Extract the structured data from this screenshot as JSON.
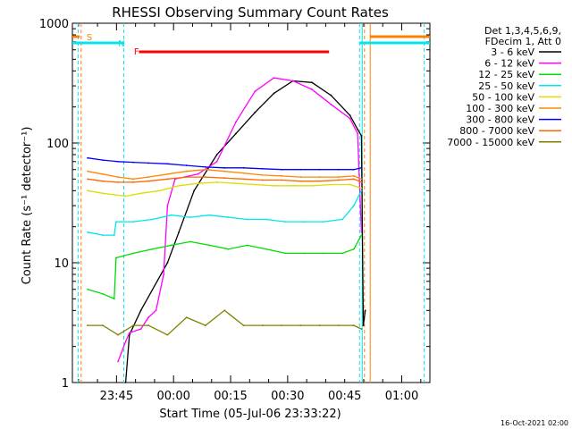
{
  "chart_data": {
    "type": "line",
    "title": "RHESSI Observing Summary Count Rates",
    "xlabel": "Start Time (05-Jul-06 23:33:22)",
    "ylabel": "Count Rate (s⁻¹ detector⁻¹)",
    "y_scale": "log",
    "ylim": [
      1,
      1000
    ],
    "y_ticks": [
      "1",
      "10",
      "100",
      "1000"
    ],
    "x_unit": "minutes since 23:33:22",
    "xlim": [
      0,
      94
    ],
    "x_ticks": [
      {
        "label": "23:45",
        "value": 11.6
      },
      {
        "label": "00:00",
        "value": 26.6
      },
      {
        "label": "00:15",
        "value": 41.6
      },
      {
        "label": "00:30",
        "value": 56.6
      },
      {
        "label": "00:45",
        "value": 71.6
      },
      {
        "label": "01:00",
        "value": 86.6
      }
    ],
    "legend_header": [
      "Det 1,3,4,5,6,9,",
      "FDecim 1, Att 0"
    ],
    "legend_position": "right",
    "footer": "16-Oct-2021 02:00",
    "markers": [
      {
        "label": "S",
        "color": "#ff8000"
      },
      {
        "label": "N",
        "color": "#00e5ee"
      },
      {
        "label": "F",
        "color": "#ff0000"
      }
    ],
    "series": [
      {
        "name": "3 - 6 keV",
        "color": "#000000",
        "points": [
          [
            14,
            1
          ],
          [
            15,
            2.5
          ],
          [
            18,
            4
          ],
          [
            25,
            10
          ],
          [
            28,
            18
          ],
          [
            32,
            40
          ],
          [
            38,
            80
          ],
          [
            43,
            120
          ],
          [
            48,
            180
          ],
          [
            53,
            260
          ],
          [
            58,
            330
          ],
          [
            63,
            320
          ],
          [
            68,
            250
          ],
          [
            73,
            170
          ],
          [
            75,
            130
          ],
          [
            76,
            115
          ],
          [
            76.5,
            3
          ],
          [
            77,
            4
          ]
        ]
      },
      {
        "name": "6 - 12 keV",
        "color": "#ff00ff",
        "points": [
          [
            12,
            1.5
          ],
          [
            14,
            2.2
          ],
          [
            15,
            2.6
          ],
          [
            18,
            2.8
          ],
          [
            20,
            3.5
          ],
          [
            22,
            4
          ],
          [
            24,
            8
          ],
          [
            25,
            30
          ],
          [
            27,
            50
          ],
          [
            33,
            55
          ],
          [
            38,
            70
          ],
          [
            43,
            150
          ],
          [
            48,
            270
          ],
          [
            53,
            350
          ],
          [
            58,
            330
          ],
          [
            63,
            280
          ],
          [
            68,
            210
          ],
          [
            73,
            160
          ],
          [
            75,
            120
          ],
          [
            76,
            18
          ]
        ]
      },
      {
        "name": "12 - 25 keV",
        "color": "#00dd00",
        "points": [
          [
            4,
            6
          ],
          [
            8,
            5.5
          ],
          [
            11,
            5
          ],
          [
            11.5,
            11
          ],
          [
            16,
            12
          ],
          [
            21,
            13
          ],
          [
            26,
            14
          ],
          [
            31,
            15
          ],
          [
            36,
            14
          ],
          [
            41,
            13
          ],
          [
            46,
            14
          ],
          [
            51,
            13
          ],
          [
            56,
            12
          ],
          [
            61,
            12
          ],
          [
            66,
            12
          ],
          [
            71,
            12
          ],
          [
            74,
            13
          ],
          [
            76,
            17
          ]
        ]
      },
      {
        "name": "25 - 50 keV",
        "color": "#00e5ee",
        "points": [
          [
            4,
            18
          ],
          [
            8,
            17
          ],
          [
            11,
            17
          ],
          [
            11.5,
            22
          ],
          [
            16,
            22
          ],
          [
            21,
            23
          ],
          [
            26,
            25
          ],
          [
            31,
            24
          ],
          [
            36,
            25
          ],
          [
            41,
            24
          ],
          [
            46,
            23
          ],
          [
            51,
            23
          ],
          [
            56,
            22
          ],
          [
            61,
            22
          ],
          [
            66,
            22
          ],
          [
            71,
            23
          ],
          [
            74,
            30
          ],
          [
            76,
            40
          ]
        ]
      },
      {
        "name": "50 - 100 keV",
        "color": "#dddd00",
        "points": [
          [
            4,
            40
          ],
          [
            8,
            38
          ],
          [
            11,
            37
          ],
          [
            14,
            36
          ],
          [
            18,
            38
          ],
          [
            23,
            40
          ],
          [
            28,
            44
          ],
          [
            33,
            46
          ],
          [
            38,
            47
          ],
          [
            43,
            46
          ],
          [
            48,
            45
          ],
          [
            53,
            44
          ],
          [
            58,
            44
          ],
          [
            63,
            44
          ],
          [
            68,
            45
          ],
          [
            73,
            45
          ],
          [
            76,
            42
          ]
        ]
      },
      {
        "name": "100 - 300 keV",
        "color": "#ff8800",
        "points": [
          [
            4,
            58
          ],
          [
            8,
            55
          ],
          [
            12,
            52
          ],
          [
            16,
            50
          ],
          [
            20,
            52
          ],
          [
            25,
            55
          ],
          [
            30,
            58
          ],
          [
            35,
            60
          ],
          [
            40,
            58
          ],
          [
            45,
            56
          ],
          [
            50,
            54
          ],
          [
            55,
            53
          ],
          [
            60,
            52
          ],
          [
            65,
            52
          ],
          [
            70,
            52
          ],
          [
            74,
            53
          ],
          [
            76,
            50
          ]
        ]
      },
      {
        "name": "300 - 800 keV",
        "color": "#0000ff",
        "points": [
          [
            4,
            75
          ],
          [
            8,
            72
          ],
          [
            12,
            70
          ],
          [
            16,
            69
          ],
          [
            20,
            68
          ],
          [
            25,
            67
          ],
          [
            30,
            65
          ],
          [
            35,
            63
          ],
          [
            40,
            62
          ],
          [
            45,
            62
          ],
          [
            50,
            61
          ],
          [
            55,
            60
          ],
          [
            60,
            60
          ],
          [
            65,
            60
          ],
          [
            70,
            60
          ],
          [
            74,
            60
          ],
          [
            76,
            62
          ]
        ]
      },
      {
        "name": "800 - 7000 keV",
        "color": "#ff6600",
        "points": [
          [
            4,
            50
          ],
          [
            8,
            48
          ],
          [
            12,
            47
          ],
          [
            16,
            47
          ],
          [
            20,
            48
          ],
          [
            25,
            50
          ],
          [
            30,
            52
          ],
          [
            35,
            52
          ],
          [
            40,
            51
          ],
          [
            45,
            50
          ],
          [
            50,
            49
          ],
          [
            55,
            49
          ],
          [
            60,
            48
          ],
          [
            65,
            48
          ],
          [
            70,
            49
          ],
          [
            74,
            50
          ],
          [
            76,
            47
          ]
        ]
      },
      {
        "name": "7000 - 15000 keV",
        "color": "#808000",
        "points": [
          [
            4,
            3
          ],
          [
            8,
            3
          ],
          [
            12,
            2.5
          ],
          [
            16,
            3
          ],
          [
            20,
            3
          ],
          [
            25,
            2.5
          ],
          [
            30,
            3.5
          ],
          [
            35,
            3
          ],
          [
            40,
            4
          ],
          [
            45,
            3
          ],
          [
            50,
            3
          ],
          [
            55,
            3
          ],
          [
            60,
            3
          ],
          [
            65,
            3
          ],
          [
            70,
            3
          ],
          [
            74,
            3
          ],
          [
            76,
            2.8
          ]
        ]
      }
    ]
  }
}
